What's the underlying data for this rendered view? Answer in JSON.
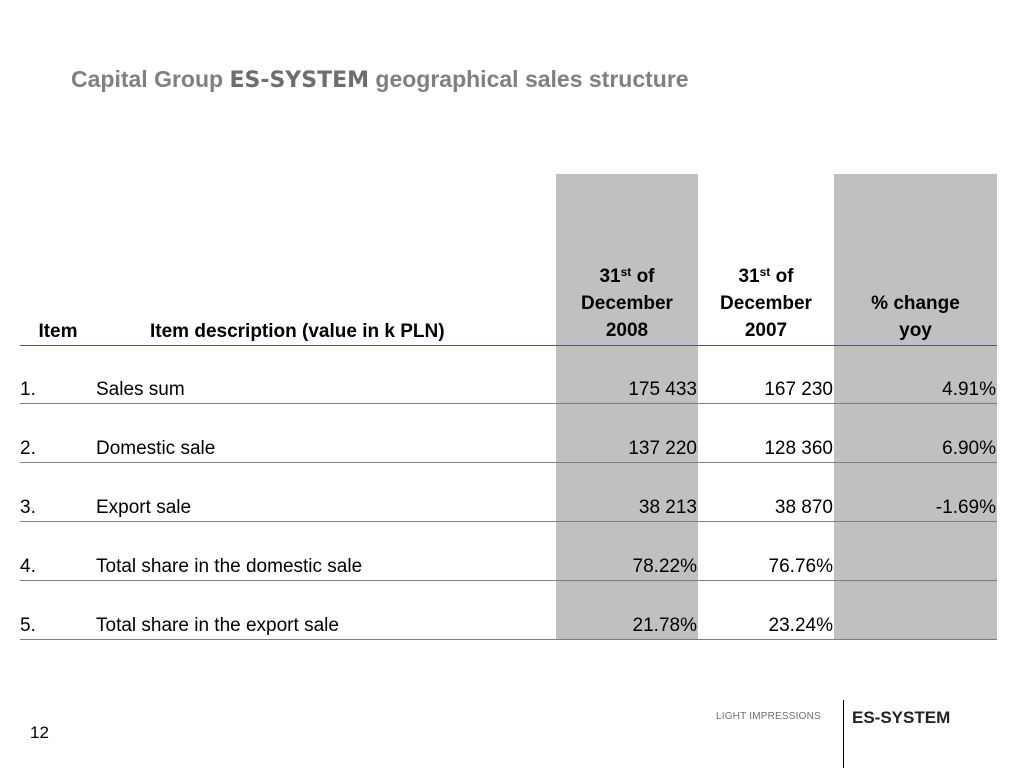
{
  "title": {
    "prefix": "Capital Group",
    "brand": "ES-SYSTEM",
    "suffix": "geographical sales structure"
  },
  "table": {
    "headers": {
      "item": "Item",
      "description": "Item description (value in k PLN)",
      "col_2008": {
        "day": "31",
        "sup": "st",
        "of": "of",
        "month": "December",
        "year": "2008"
      },
      "col_2007": {
        "day": "31",
        "sup": "st",
        "of": "of",
        "month": "December",
        "year": "2007"
      },
      "change": {
        "line1": "% change",
        "line2": "yoy"
      }
    },
    "rows": [
      {
        "num": "1.",
        "desc": "Sales sum",
        "v2008": "175 433",
        "v2007": "167 230",
        "chg": "4.91%"
      },
      {
        "num": "2.",
        "desc": "Domestic sale",
        "v2008": "137 220",
        "v2007": "128 360",
        "chg": "6.90%"
      },
      {
        "num": "3.",
        "desc": "Export sale",
        "v2008": "38 213",
        "v2007": "38 870",
        "chg": "-1.69%"
      },
      {
        "num": "4.",
        "desc": "Total share in the domestic sale",
        "v2008": "78.22%",
        "v2007": "76.76%",
        "chg": ""
      },
      {
        "num": "5.",
        "desc": "Total share in the export sale",
        "v2008": "21.78%",
        "v2007": "23.24%",
        "chg": ""
      }
    ]
  },
  "footer": {
    "page_number": "12",
    "tagline": "LIGHT IMPRESSIONS",
    "brand": "ES-SYSTEM"
  },
  "colors": {
    "title_gray": "#808080",
    "shade": "#c0c0c0",
    "header_rule": "#b03030"
  }
}
